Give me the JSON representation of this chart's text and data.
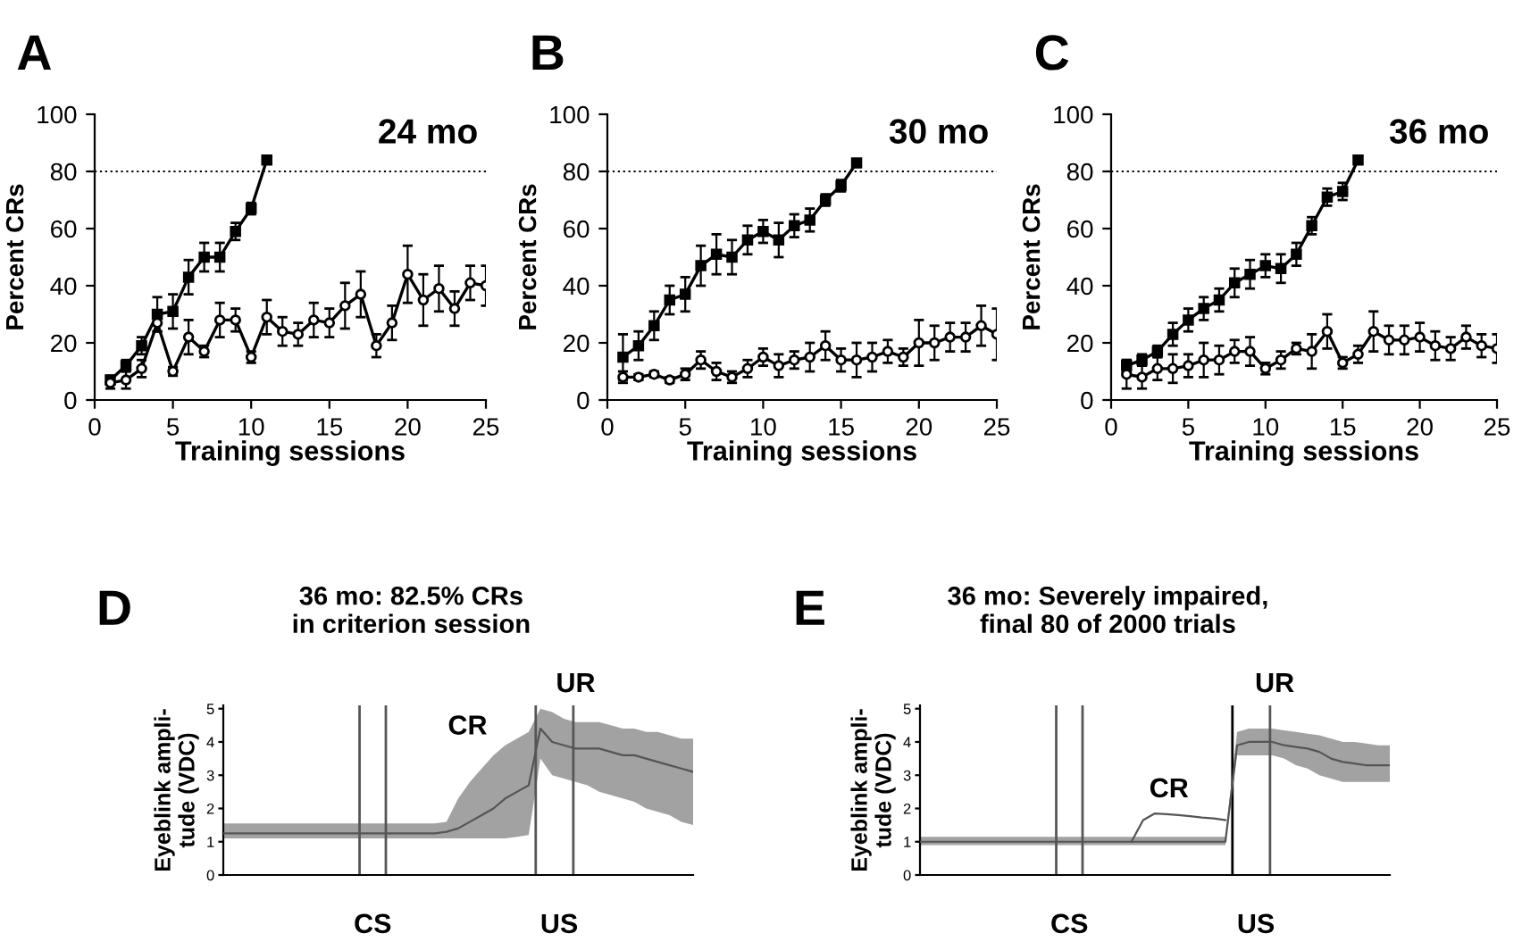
{
  "chart_data": [
    {
      "type": "line",
      "title": "A",
      "xlabel": "Training sessions",
      "ylabel": "Percent CRs",
      "annotations": [
        "24 mo"
      ],
      "xlim": [
        0,
        25
      ],
      "ylim": [
        0,
        100
      ],
      "xticks": [
        0,
        5,
        10,
        15,
        20,
        25
      ],
      "yticks": [
        0,
        20,
        40,
        60,
        80,
        100
      ],
      "grid": false,
      "legend": false,
      "ref_lines": [
        {
          "axis": "y",
          "value": 80,
          "label": null,
          "color": "#000000",
          "line_style": "dotted"
        }
      ],
      "series": [
        {
          "color": "#000000",
          "marker": "square",
          "x": [
            1,
            2,
            3,
            4,
            5,
            6,
            7,
            8,
            9,
            10,
            11
          ],
          "values": [
            7,
            12,
            19,
            30,
            31,
            43,
            50,
            50,
            59,
            67,
            84
          ],
          "errors": [
            1.5,
            2,
            3,
            6,
            6,
            6,
            5,
            5,
            3,
            2,
            1
          ]
        },
        {
          "color": "#000000",
          "marker": "circle",
          "x": [
            1,
            2,
            3,
            4,
            5,
            6,
            7,
            8,
            9,
            10,
            11,
            12,
            13,
            14,
            15,
            16,
            17,
            18,
            19,
            20,
            21,
            22,
            23,
            24,
            25
          ],
          "values": [
            6,
            7,
            11,
            27,
            10,
            22,
            17,
            28,
            28,
            15,
            29,
            24,
            23,
            28,
            27,
            33,
            37,
            19,
            27,
            44,
            35,
            39,
            32,
            41,
            40
          ],
          "errors": [
            2,
            3,
            3,
            3,
            1.5,
            6,
            2,
            6,
            4,
            2,
            6,
            5,
            4,
            6,
            5,
            8,
            8,
            4,
            6,
            10,
            9,
            8,
            6,
            6,
            7
          ]
        }
      ]
    },
    {
      "type": "line",
      "title": "B",
      "xlabel": "Training sessions",
      "ylabel": "Percent CRs",
      "annotations": [
        "30 mo"
      ],
      "xlim": [
        0,
        25
      ],
      "ylim": [
        0,
        100
      ],
      "xticks": [
        0,
        5,
        10,
        15,
        20,
        25
      ],
      "yticks": [
        0,
        20,
        40,
        60,
        80,
        100
      ],
      "grid": false,
      "legend": false,
      "ref_lines": [
        {
          "axis": "y",
          "value": 80,
          "label": null,
          "color": "#000000",
          "line_style": "dotted"
        }
      ],
      "series": [
        {
          "color": "#000000",
          "marker": "square",
          "x": [
            1,
            2,
            3,
            4,
            5,
            6,
            7,
            8,
            9,
            10,
            11,
            12,
            13,
            14,
            15,
            16
          ],
          "values": [
            15,
            19,
            26,
            35,
            37,
            47,
            51,
            50,
            56,
            59,
            56,
            61,
            63,
            70,
            75,
            83
          ],
          "errors": [
            8,
            5,
            5,
            5,
            6,
            7,
            7,
            6,
            5,
            4,
            6,
            4,
            4,
            2,
            2,
            1
          ]
        },
        {
          "color": "#000000",
          "marker": "circle",
          "x": [
            1,
            2,
            3,
            4,
            5,
            6,
            7,
            8,
            9,
            10,
            11,
            12,
            13,
            14,
            15,
            16,
            17,
            18,
            19,
            20,
            21,
            22,
            23,
            24,
            25
          ],
          "values": [
            8,
            8,
            9,
            7,
            9,
            14,
            10,
            8,
            11,
            15,
            12,
            14,
            15,
            19,
            14,
            14,
            15,
            17,
            15,
            20,
            20,
            22,
            22,
            26,
            23
          ],
          "errors": [
            2,
            1,
            1,
            1,
            2,
            3,
            3,
            2,
            3,
            3,
            4,
            3,
            5,
            5,
            4,
            6,
            5,
            4,
            3,
            8,
            6,
            5,
            5,
            7,
            9
          ]
        }
      ]
    },
    {
      "type": "line",
      "title": "C",
      "xlabel": "Training sessions",
      "ylabel": "Percent CRs",
      "annotations": [
        "36 mo"
      ],
      "xlim": [
        0,
        25
      ],
      "ylim": [
        0,
        100
      ],
      "xticks": [
        0,
        5,
        10,
        15,
        20,
        25
      ],
      "yticks": [
        0,
        20,
        40,
        60,
        80,
        100
      ],
      "grid": false,
      "legend": false,
      "ref_lines": [
        {
          "axis": "y",
          "value": 80,
          "label": null,
          "color": "#000000",
          "line_style": "dotted"
        }
      ],
      "series": [
        {
          "color": "#000000",
          "marker": "square",
          "x": [
            1,
            2,
            3,
            4,
            5,
            6,
            7,
            8,
            9,
            10,
            11,
            12,
            13,
            14,
            15,
            16
          ],
          "values": [
            12,
            14,
            17,
            23,
            28,
            32,
            35,
            41,
            44,
            47,
            46,
            51,
            61,
            71,
            73,
            84
          ],
          "errors": [
            2,
            2,
            2,
            4,
            4,
            4,
            4,
            5,
            5,
            4,
            5,
            4,
            3,
            3,
            3,
            1
          ]
        },
        {
          "color": "#000000",
          "marker": "circle",
          "x": [
            1,
            2,
            3,
            4,
            5,
            6,
            7,
            8,
            9,
            10,
            11,
            12,
            13,
            14,
            15,
            16,
            17,
            18,
            19,
            20,
            21,
            22,
            23,
            24,
            25
          ],
          "values": [
            9,
            8,
            11,
            11,
            12,
            14,
            14,
            17,
            17,
            11,
            14,
            18,
            17,
            24,
            13,
            16,
            24,
            21,
            21,
            22,
            19,
            18,
            22,
            19,
            18
          ],
          "errors": [
            5,
            4,
            4,
            5,
            4,
            6,
            5,
            4,
            5,
            2,
            3,
            2,
            6,
            6,
            2,
            3,
            7,
            5,
            5,
            5,
            5,
            4,
            4,
            4,
            5
          ]
        }
      ]
    },
    {
      "type": "line",
      "title": "D",
      "subtitle": "36 mo: 82.5% CRs\nin criterion session",
      "ylabel": "Eyeblink ampli-\ntude (VDC)",
      "ylim": [
        0,
        5.1
      ],
      "yticks": [
        0,
        1,
        2,
        3,
        4,
        5
      ],
      "grid": false,
      "legend": false,
      "categories": [
        null,
        null,
        null,
        null,
        null,
        null,
        null,
        null,
        null,
        null,
        null,
        null,
        null,
        null,
        null,
        null,
        null,
        null,
        null,
        null,
        null,
        null,
        null,
        null,
        null,
        null,
        null,
        null,
        null,
        null,
        null,
        null,
        null,
        null,
        null,
        null,
        null,
        null,
        null,
        null,
        null
      ],
      "annotations": [
        "CR",
        "UR",
        "CS",
        "US"
      ],
      "series": [
        {
          "color": "#555555",
          "marker": "none",
          "values": [
            1.25,
            1.25,
            1.25,
            1.25,
            1.25,
            1.25,
            1.25,
            1.25,
            1.25,
            1.25,
            1.25,
            1.25,
            1.25,
            1.25,
            1.25,
            1.25,
            1.25,
            1.25,
            1.25,
            1.3,
            1.4,
            1.6,
            1.8,
            2.0,
            2.3,
            2.5,
            2.7,
            4.4,
            4.0,
            3.9,
            3.8,
            3.8,
            3.8,
            3.7,
            3.6,
            3.6,
            3.5,
            3.4,
            3.3,
            3.2,
            3.1
          ],
          "lower": [
            1.1,
            1.1,
            1.1,
            1.1,
            1.1,
            1.1,
            1.1,
            1.1,
            1.1,
            1.1,
            1.1,
            1.1,
            1.1,
            1.1,
            1.1,
            1.1,
            1.1,
            1.1,
            1.1,
            1.1,
            1.1,
            1.1,
            1.1,
            1.1,
            1.1,
            1.15,
            1.2,
            3.5,
            3.0,
            2.9,
            2.8,
            2.7,
            2.5,
            2.4,
            2.3,
            2.2,
            2.0,
            1.9,
            1.8,
            1.6,
            1.5
          ],
          "upper": [
            1.55,
            1.55,
            1.55,
            1.55,
            1.55,
            1.55,
            1.55,
            1.55,
            1.55,
            1.55,
            1.55,
            1.55,
            1.55,
            1.55,
            1.55,
            1.55,
            1.55,
            1.55,
            1.55,
            1.6,
            2.3,
            2.8,
            3.2,
            3.6,
            3.9,
            4.1,
            4.3,
            5.0,
            4.9,
            4.7,
            4.6,
            4.6,
            4.6,
            4.5,
            4.4,
            4.4,
            4.3,
            4.3,
            4.2,
            4.1,
            4.1
          ]
        }
      ]
    },
    {
      "type": "line",
      "title": "E",
      "subtitle": "36 mo: Severely impaired,\nfinal 80 of 2000 trials",
      "ylabel": "Eyeblink ampli-\ntude (VDC)",
      "ylim": [
        0,
        5.1
      ],
      "yticks": [
        0,
        1,
        2,
        3,
        4,
        5
      ],
      "grid": false,
      "legend": false,
      "categories": [
        null,
        null,
        null,
        null,
        null,
        null,
        null,
        null,
        null,
        null,
        null,
        null,
        null,
        null,
        null,
        null,
        null,
        null,
        null,
        null,
        null,
        null,
        null,
        null,
        null,
        null,
        null,
        null,
        null,
        null,
        null,
        null,
        null,
        null,
        null,
        null,
        null,
        null,
        null,
        null,
        null
      ],
      "annotations": [
        "CR",
        "UR",
        "CS",
        "US"
      ],
      "series": [
        {
          "color": "#555555",
          "marker": "none",
          "values": [
            1.0,
            1.0,
            1.0,
            1.0,
            1.0,
            1.0,
            1.0,
            1.0,
            1.0,
            1.0,
            1.0,
            1.0,
            1.0,
            1.0,
            1.0,
            1.0,
            1.0,
            1.0,
            1.0,
            1.0,
            1.0,
            1.0,
            1.0,
            1.0,
            1.0,
            1.0,
            1.0,
            3.9,
            4.0,
            4.0,
            4.0,
            3.9,
            3.85,
            3.8,
            3.7,
            3.5,
            3.4,
            3.35,
            3.3,
            3.3,
            3.3
          ],
          "lower": [
            0.9,
            0.9,
            0.9,
            0.9,
            0.9,
            0.9,
            0.9,
            0.9,
            0.9,
            0.9,
            0.9,
            0.9,
            0.9,
            0.9,
            0.9,
            0.9,
            0.9,
            0.9,
            0.9,
            0.9,
            0.9,
            0.9,
            0.9,
            0.9,
            0.9,
            0.9,
            0.9,
            3.6,
            3.6,
            3.6,
            3.6,
            3.5,
            3.3,
            3.2,
            3.0,
            2.9,
            2.8,
            2.8,
            2.8,
            2.8,
            2.8
          ],
          "upper": [
            1.15,
            1.15,
            1.15,
            1.15,
            1.15,
            1.15,
            1.15,
            1.15,
            1.15,
            1.15,
            1.15,
            1.15,
            1.15,
            1.15,
            1.15,
            1.15,
            1.15,
            1.15,
            1.15,
            1.15,
            1.15,
            1.15,
            1.15,
            1.15,
            1.15,
            1.15,
            1.15,
            4.3,
            4.4,
            4.4,
            4.4,
            4.35,
            4.3,
            4.25,
            4.2,
            4.1,
            4.0,
            4.0,
            3.95,
            3.9,
            3.9
          ]
        },
        {
          "color": "#555555",
          "marker": "none",
          "values": [
            null,
            null,
            null,
            null,
            null,
            null,
            null,
            null,
            null,
            null,
            null,
            null,
            null,
            null,
            null,
            null,
            null,
            null,
            1.0,
            1.65,
            1.85,
            1.83,
            1.8,
            1.77,
            1.73,
            1.7,
            1.65,
            null,
            null,
            null,
            null,
            null,
            null,
            null,
            null,
            null,
            null,
            null,
            null,
            null,
            null
          ]
        }
      ]
    }
  ]
}
